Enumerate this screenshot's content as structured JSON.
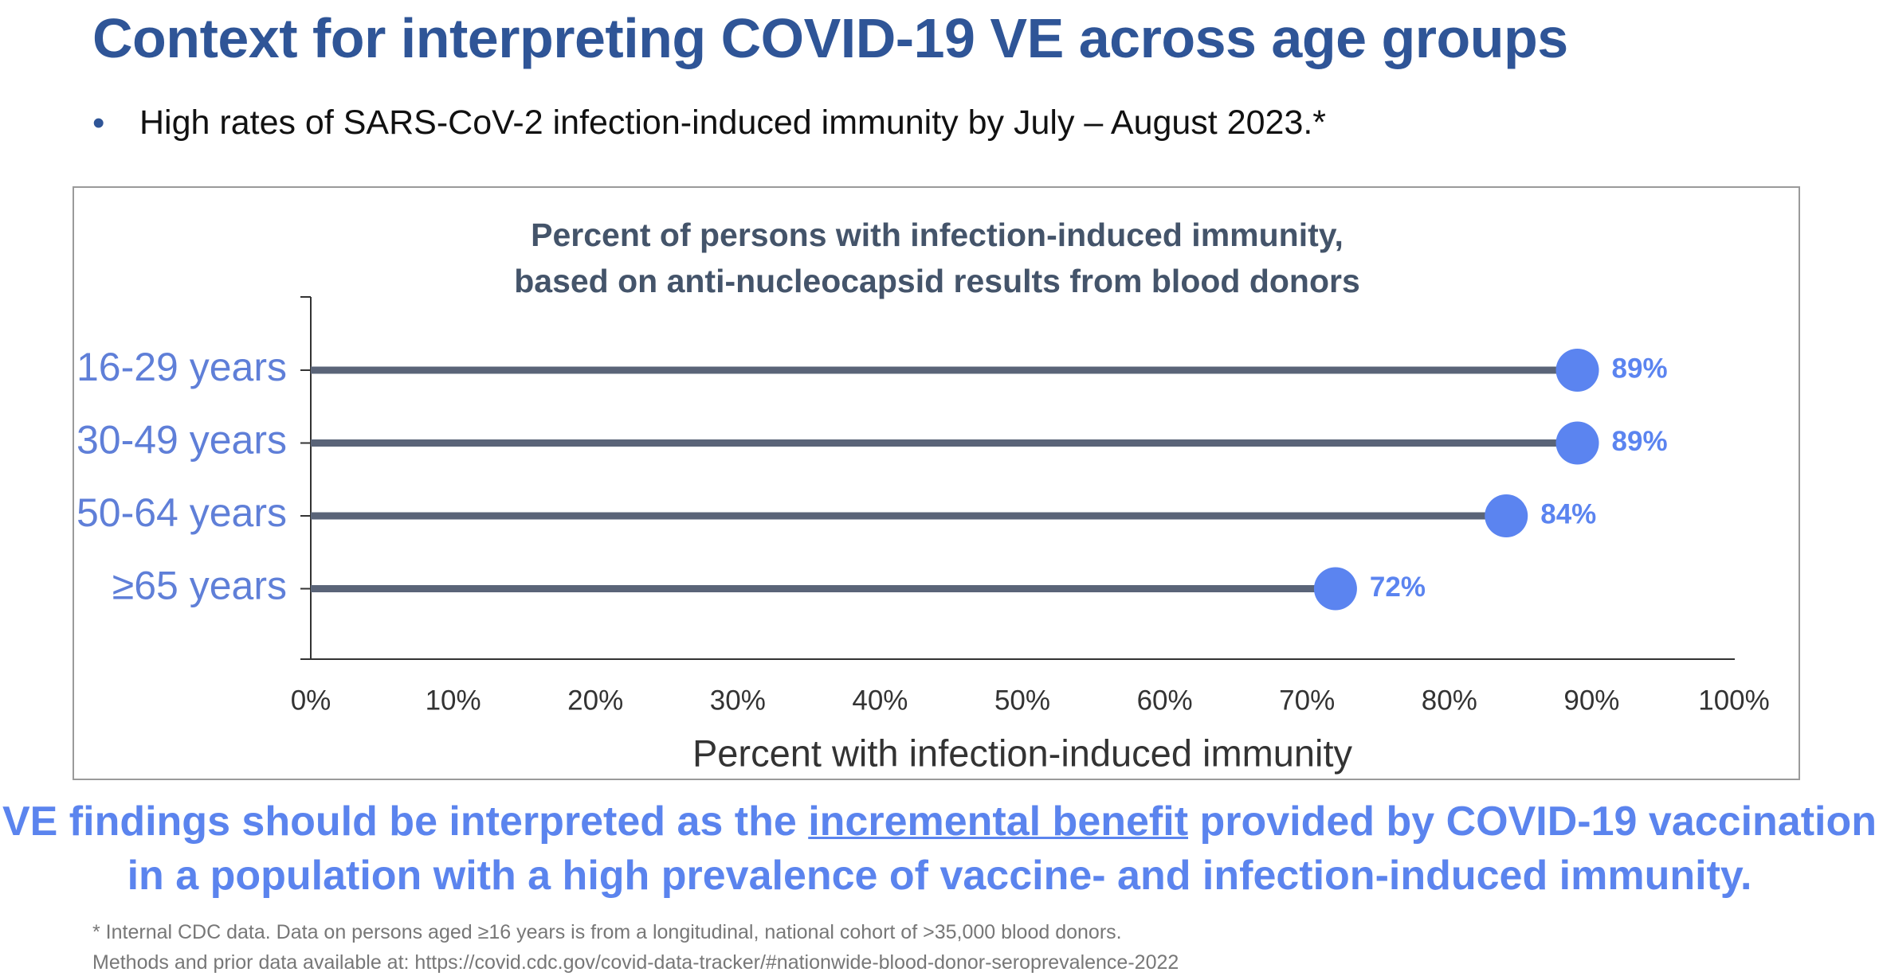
{
  "title": "Context for interpreting COVID-19 VE across age groups",
  "bullet": "High rates of SARS-CoV-2 infection-induced immunity by July – August 2023.*",
  "chart_data": {
    "type": "lollipop",
    "title": [
      "Percent of persons with infection-induced immunity,",
      "based on anti-nucleocapsid results from blood donors"
    ],
    "categories": [
      "16-29 years",
      "30-49 years",
      "50-64 years",
      "≥65 years"
    ],
    "values": [
      89,
      89,
      84,
      72
    ],
    "value_labels": [
      "89%",
      "89%",
      "84%",
      "72%"
    ],
    "color": "#5b84f0",
    "stem_color": "#5a6478",
    "x_label": "Percent with infection-induced immunity",
    "xlim": [
      0,
      100
    ],
    "xticks": [
      {
        "value": 0,
        "label": "0%"
      },
      {
        "value": 10,
        "label": "10%"
      },
      {
        "value": 20,
        "label": "20%"
      },
      {
        "value": 30,
        "label": "30%"
      },
      {
        "value": 40,
        "label": "40%"
      },
      {
        "value": 50,
        "label": "50%"
      },
      {
        "value": 60,
        "label": "60%"
      },
      {
        "value": 70,
        "label": "70%"
      },
      {
        "value": 80,
        "label": "80%"
      },
      {
        "value": 90,
        "label": "90%"
      },
      {
        "value": 100,
        "label": "100%"
      }
    ],
    "grid": false
  },
  "conclusion": [
    "VE findings should be interpreted as the ",
    "incremental benefit",
    " provided by COVID-19 vaccination",
    "in a population with a high prevalence of vaccine- and infection-induced immunity."
  ],
  "footnote": [
    "* Internal CDC data. Data on persons aged ≥16 years is from a longitudinal, national cohort of >35,000 blood donors.",
    "Methods and prior data available at: https://covid.cdc.gov/covid-data-tracker/#nationwide-blood-donor-seroprevalence-2022"
  ]
}
